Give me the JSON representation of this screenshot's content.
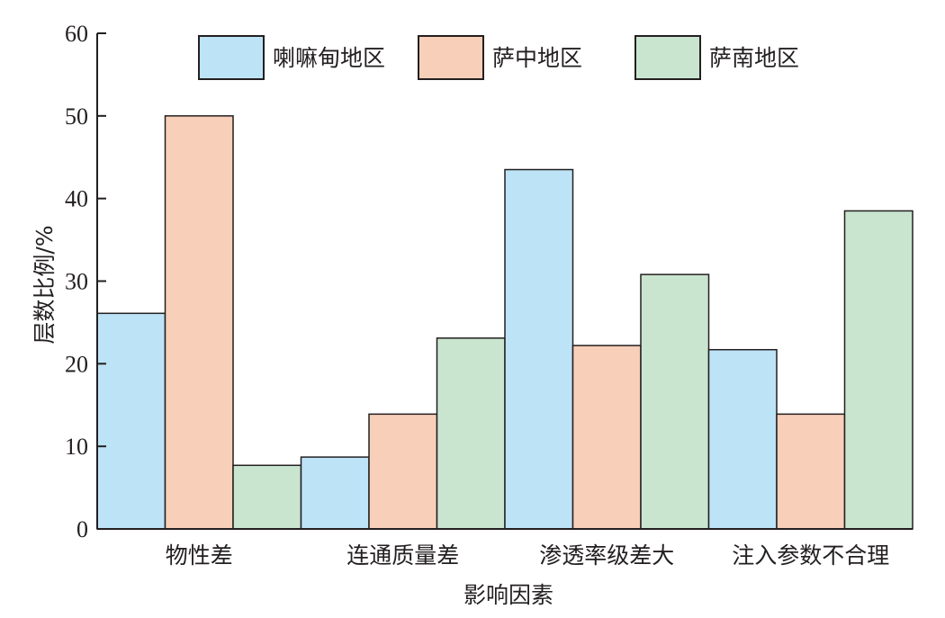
{
  "chart_data": {
    "type": "bar",
    "categories": [
      "物性差",
      "连通质量差",
      "渗透率级差大",
      "注入参数不合理"
    ],
    "series": [
      {
        "name": "喇嘛甸地区",
        "values": [
          26.1,
          8.7,
          43.5,
          21.7
        ],
        "color": "#bde3f7"
      },
      {
        "name": "萨中地区",
        "values": [
          50.0,
          13.9,
          22.2,
          13.9
        ],
        "color": "#f8cfb9"
      },
      {
        "name": "萨南地区",
        "values": [
          7.7,
          23.1,
          30.8,
          38.5
        ],
        "color": "#c9e5cf"
      }
    ],
    "xlabel": "影响因素",
    "ylabel": "层数比例/%",
    "ylim": [
      0,
      60
    ],
    "yticks": [
      0,
      10,
      20,
      30,
      40,
      50,
      60
    ],
    "grid": false,
    "legend_position": "top"
  }
}
